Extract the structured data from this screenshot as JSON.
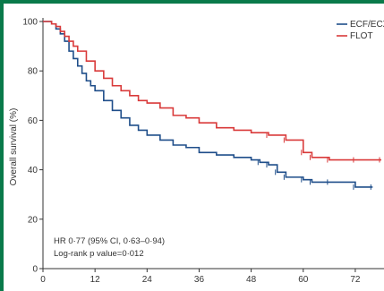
{
  "chart_data": {
    "type": "line",
    "title": "",
    "ylabel": "Overall survival (%)",
    "xlabel": "",
    "xlim": [
      0,
      78
    ],
    "ylim": [
      0,
      100
    ],
    "x_ticks": [
      0,
      12,
      24,
      36,
      48,
      60,
      72
    ],
    "y_ticks": [
      0,
      20,
      40,
      60,
      80,
      100
    ],
    "grid": false,
    "legend_position": "top-right",
    "annotations": [
      "HR 0·77 (95% CI, 0·63–0·94)",
      "Log-rank p value=0·012"
    ],
    "series": [
      {
        "name": "ECF/ECX",
        "color": "#1f4e8a",
        "x": [
          0,
          2,
          3,
          4,
          5,
          6,
          7,
          8,
          9,
          10,
          11,
          12,
          14,
          16,
          18,
          20,
          22,
          24,
          27,
          30,
          33,
          36,
          40,
          44,
          48,
          50,
          52,
          54,
          56,
          60,
          62,
          66,
          72,
          76
        ],
        "y": [
          100,
          99,
          97,
          95,
          92,
          88,
          85,
          82,
          79,
          76,
          74,
          72,
          68,
          64,
          61,
          58,
          56,
          54,
          52,
          50,
          49,
          47,
          46,
          45,
          44,
          43,
          42,
          39,
          37,
          36,
          35,
          35,
          33,
          33
        ]
      },
      {
        "name": "FLOT",
        "color": "#d93a3a",
        "x": [
          0,
          2,
          3,
          4,
          5,
          6,
          7,
          8,
          10,
          12,
          14,
          16,
          18,
          20,
          22,
          24,
          27,
          30,
          33,
          36,
          40,
          44,
          48,
          52,
          56,
          60,
          62,
          66,
          72,
          78
        ],
        "y": [
          100,
          99,
          98,
          96,
          94,
          92,
          90,
          88,
          84,
          80,
          77,
          74,
          72,
          70,
          68,
          67,
          65,
          62,
          61,
          59,
          57,
          56,
          55,
          54,
          52,
          47,
          45,
          44,
          44,
          44
        ]
      }
    ]
  }
}
